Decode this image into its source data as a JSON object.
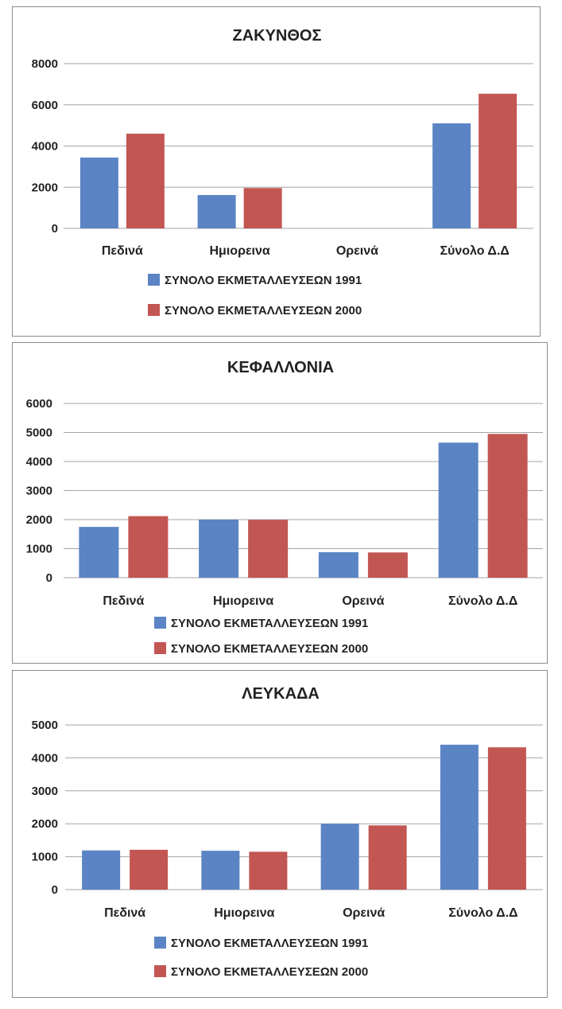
{
  "colors": {
    "series_1991": "#5b84c4",
    "series_2000": "#c25653",
    "grid": "#a6a6a6"
  },
  "chart_data": [
    {
      "type": "bar",
      "title": "ΖΑΚΥΝΘΟΣ",
      "categories": [
        "Πεδινά",
        "Ημιορεινα",
        "Ορεινά",
        "Σύνολο Δ.Δ"
      ],
      "yticks": [
        "0",
        "2000",
        "4000",
        "6000",
        "8000"
      ],
      "ylim": [
        0,
        8000
      ],
      "grid": true,
      "legend": "bottom",
      "series": [
        {
          "name": "ΣΥΝΟΛΟ ΕΚΜΕΤΑΛΛΕΥΣΕΩΝ 1991",
          "values": [
            3440,
            1620,
            0,
            5100
          ]
        },
        {
          "name": "ΣΥΝΟΛΟ ΕΚΜΕΤΑΛΛΕΥΣΕΩΝ  2000",
          "values": [
            4600,
            1960,
            0,
            6540
          ]
        }
      ]
    },
    {
      "type": "bar",
      "title": "ΚΕΦΑΛΛΟΝΙΑ",
      "categories": [
        "Πεδινά",
        "Ημιορεινα",
        "Ορεινά",
        "Σύνολο Δ.Δ"
      ],
      "yticks": [
        "0",
        "1000",
        "2000",
        "3000",
        "4000",
        "5000",
        "6000"
      ],
      "ylim": [
        0,
        6000
      ],
      "grid": true,
      "legend": "bottom",
      "series": [
        {
          "name": "ΣΥΝΟΛΟ ΕΚΜΕΤΑΛΛΕΥΣΕΩΝ 1991",
          "values": [
            1750,
            2000,
            880,
            4650
          ]
        },
        {
          "name": "ΣΥΝΟΛΟ ΕΚΜΕΤΑΛΛΕΥΣΕΩΝ  2000",
          "values": [
            2120,
            1990,
            870,
            4950
          ]
        }
      ]
    },
    {
      "type": "bar",
      "title": "ΛΕΥΚΑΔΑ",
      "categories": [
        "Πεδινά",
        "Ημιορεινα",
        "Ορεινά",
        "Σύνολο Δ.Δ"
      ],
      "yticks": [
        "0",
        "1000",
        "2000",
        "3000",
        "4000",
        "5000"
      ],
      "ylim": [
        0,
        5000
      ],
      "grid": true,
      "legend": "bottom",
      "series": [
        {
          "name": "ΣΥΝΟΛΟ ΕΚΜΕΤΑΛΛΕΥΣΕΩΝ 1991",
          "values": [
            1190,
            1180,
            2000,
            4400
          ]
        },
        {
          "name": "ΣΥΝΟΛΟ ΕΚΜΕΤΑΛΛΕΥΣΕΩΝ  2000",
          "values": [
            1210,
            1150,
            1950,
            4320
          ]
        }
      ]
    }
  ]
}
